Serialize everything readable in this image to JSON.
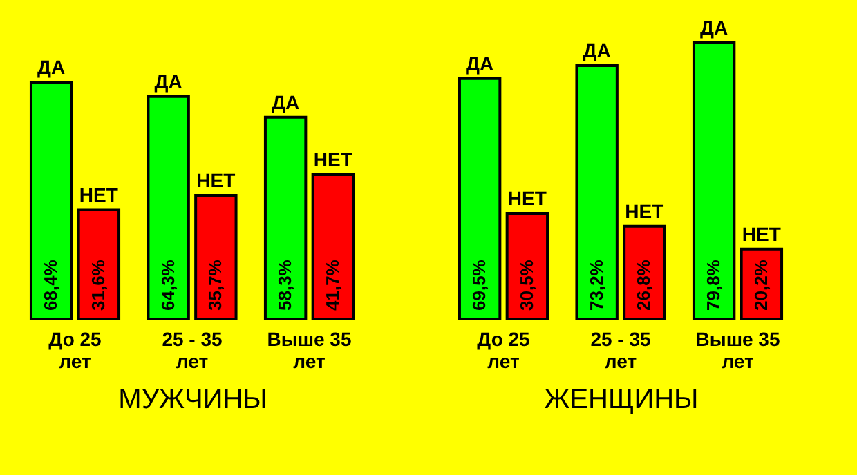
{
  "chart_data": [
    {
      "type": "bar",
      "xlabel": "МУЖЧИНЫ",
      "categories": [
        "До 25 лет",
        "25 - 35 лет",
        "Выше 35 лет"
      ],
      "legend": false,
      "series": [
        {
          "name": "ДА",
          "color": "#00ff00",
          "values": [
            68.4,
            64.3,
            58.3
          ],
          "value_labels": [
            "68,4%",
            "64,3%",
            "58,3%"
          ]
        },
        {
          "name": "НЕТ",
          "color": "#ff0000",
          "values": [
            31.6,
            35.7,
            41.7
          ],
          "value_labels": [
            "31,6%",
            "35,7%",
            "41,7%"
          ]
        }
      ]
    },
    {
      "type": "bar",
      "xlabel": "ЖЕНЩИНЫ",
      "categories": [
        "До 25 лет",
        "25 - 35 лет",
        "Выше 35 лет"
      ],
      "legend": false,
      "series": [
        {
          "name": "ДА",
          "color": "#00ff00",
          "values": [
            69.5,
            73.2,
            79.8
          ],
          "value_labels": [
            "69,5%",
            "73,2%",
            "79,8%"
          ]
        },
        {
          "name": "НЕТ",
          "color": "#ff0000",
          "values": [
            30.5,
            26.8,
            20.2
          ],
          "value_labels": [
            "30,5%",
            "26,8%",
            "20,2%"
          ]
        }
      ]
    }
  ]
}
